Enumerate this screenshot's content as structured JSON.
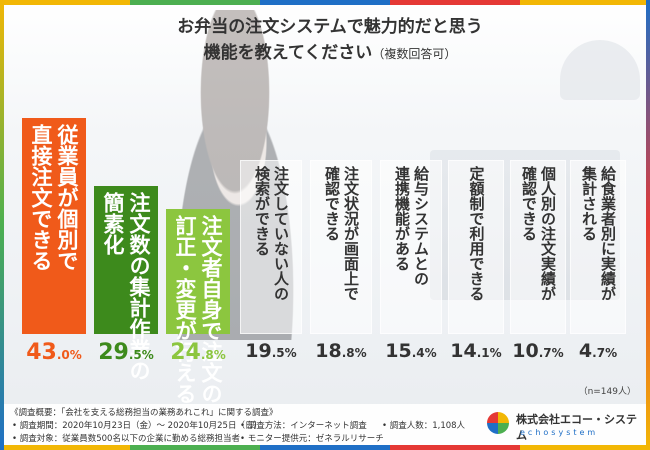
{
  "title_line1": "お弁当の注文システムで魅力的だと思う",
  "title_line2": "機能を教えてください",
  "title_note": "（複数回答可）",
  "sample_note": "（n=149人）",
  "chart_data": {
    "type": "bar",
    "title": "お弁当の注文システムで魅力的だと思う機能を教えてください（複数回答可）",
    "categories": [
      "従業員が個別で直接注文できる",
      "注文数の集計作業の簡素化",
      "注文者自身で注文の訂正・変更が行える",
      "注文していない人の検索ができる",
      "注文状況が画面上で確認できる",
      "給与システムとの連携機能がある",
      "定額制で利用できる",
      "個人別の注文実績が確認できる",
      "給食業者別に実績が集計される"
    ],
    "label_lines": [
      [
        "従業員が個別で",
        "直接注文できる"
      ],
      [
        "注文数の集計作業の",
        "簡素化"
      ],
      [
        "注文者自身で注文の",
        "訂正・変更が行える"
      ],
      [
        "注文していない人の",
        "検索ができる"
      ],
      [
        "注文状況が画面上で",
        "確認できる"
      ],
      [
        "給与システムとの",
        "連携機能がある"
      ],
      [
        "定額制で利用できる"
      ],
      [
        "個人別の注文実績が",
        "確認できる"
      ],
      [
        "給食業者別に実績が",
        "集計される"
      ]
    ],
    "values": [
      43.0,
      29.5,
      24.8,
      19.5,
      18.8,
      15.4,
      14.1,
      10.7,
      4.7
    ],
    "value_labels": [
      [
        "43",
        ".0",
        "%"
      ],
      [
        "29",
        ".5",
        "%"
      ],
      [
        "24",
        ".8",
        "%"
      ],
      [
        "19",
        ".5",
        "%"
      ],
      [
        "18",
        ".8",
        "%"
      ],
      [
        "15",
        ".4",
        "%"
      ],
      [
        "14",
        ".1",
        "%"
      ],
      [
        "10",
        ".7",
        "%"
      ],
      [
        "4",
        ".7",
        "%"
      ]
    ],
    "colors": [
      "#f05a1a",
      "#3d8a1c",
      "#8cc63f",
      "#ffffff",
      "#ffffff",
      "#ffffff",
      "#ffffff",
      "#ffffff",
      "#ffffff"
    ],
    "value_colors": [
      "#f05a1a",
      "#3d8a1c",
      "#8cc63f",
      "#333333",
      "#333333",
      "#333333",
      "#333333",
      "#333333",
      "#333333"
    ],
    "ylim": [
      0,
      43.0
    ]
  },
  "footer": {
    "survey_title": "《調査概要：「会社を支える総務担当の業務あれこれ」に関する調査》",
    "period": "• 調査期間：2020年10月23日（金）～ 2020年10月25日（日）",
    "method": "• 調査方法：インターネット調査",
    "count": "• 調査人数：1,108人",
    "target": "• 調査対象：従業員数500名以下の企業に勤める総務担当者",
    "provider": "• モニター提供元：ゼネラルリサーチ",
    "company": "株式会社エコー・システム",
    "company_sub": "echosystem"
  },
  "frame_colors": [
    "#f2b705",
    "#4caf50",
    "#1f6fc6",
    "#e53935",
    "#f2b705"
  ]
}
